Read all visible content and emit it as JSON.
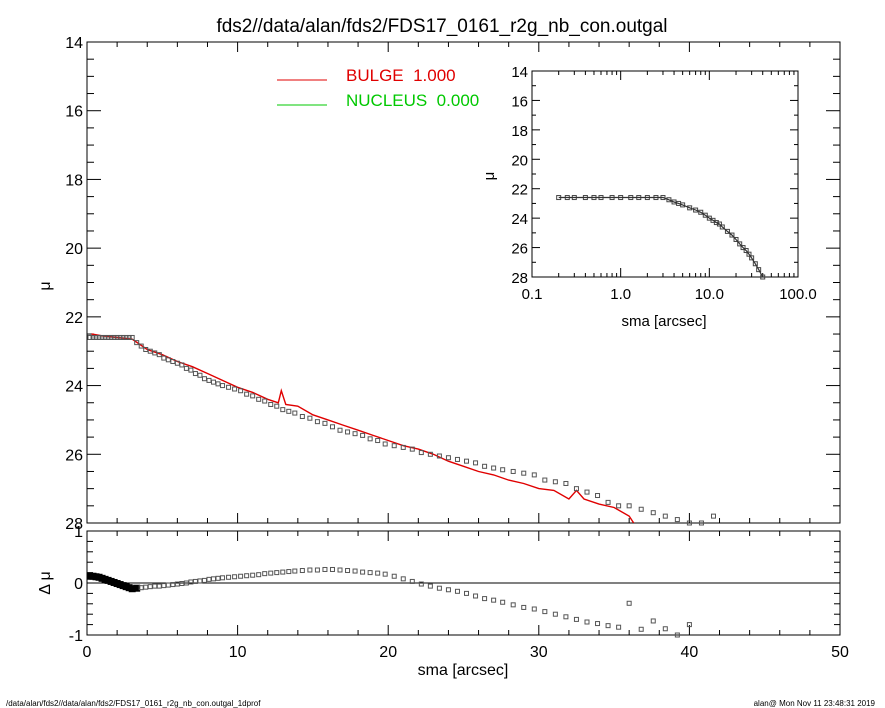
{
  "title": "fds2//data/alan/fds2/FDS17_0161_r2g_nb_con.outgal",
  "footer_left": "/data/alan/fds2//data/alan/fds2/FDS17_0161_r2g_nb_con.outgal_1dprof",
  "footer_right": "alan@  Mon Nov 11 23:48:31 2019",
  "colors": {
    "bulge": "#e00000",
    "nucleus": "#00c800",
    "data": "#555555",
    "axes": "#000000"
  },
  "chart_data": [
    {
      "id": "main",
      "type": "scatter",
      "ylabel": "μ",
      "xlim": [
        0,
        50
      ],
      "ylim": [
        28,
        14
      ],
      "yticks": [
        "14",
        "16",
        "18",
        "20",
        "22",
        "24",
        "26",
        "28"
      ],
      "legend": [
        {
          "name": "BULGE  1.000",
          "color": "#e00000"
        },
        {
          "name": "NUCLEUS  0.000",
          "color": "#00c800"
        }
      ],
      "series": [
        {
          "name": "BULGE",
          "type": "line",
          "x": [
            0.3,
            1,
            2,
            3,
            4,
            5,
            6,
            7,
            8,
            9,
            10,
            11,
            12,
            12.7,
            12.9,
            13.2,
            14,
            15,
            16,
            17,
            18,
            19,
            20,
            21,
            22,
            23,
            24,
            25,
            26,
            27,
            28,
            29,
            30,
            31,
            32,
            32.5,
            33,
            34,
            35,
            36,
            36.3
          ],
          "y": [
            22.5,
            22.55,
            22.6,
            22.65,
            22.95,
            23.1,
            23.3,
            23.45,
            23.65,
            23.85,
            24.05,
            24.2,
            24.4,
            24.5,
            24.15,
            24.55,
            24.6,
            24.85,
            25.0,
            25.15,
            25.3,
            25.45,
            25.6,
            25.75,
            25.85,
            26.0,
            26.2,
            26.35,
            26.5,
            26.6,
            26.75,
            26.85,
            27.0,
            27.05,
            27.3,
            27.05,
            27.3,
            27.45,
            27.55,
            27.8,
            28.0
          ]
        },
        {
          "name": "data",
          "type": "scatter",
          "x": [
            0.2,
            0.4,
            0.6,
            0.8,
            1.0,
            1.2,
            1.4,
            1.6,
            1.8,
            2.0,
            2.2,
            2.4,
            2.6,
            2.8,
            3.0,
            3.3,
            3.6,
            3.9,
            4.2,
            4.5,
            4.8,
            5.1,
            5.4,
            5.7,
            6.0,
            6.3,
            6.6,
            6.9,
            7.2,
            7.5,
            7.8,
            8.1,
            8.4,
            8.7,
            9.0,
            9.4,
            9.8,
            10.2,
            10.6,
            11.0,
            11.4,
            11.8,
            12.2,
            12.6,
            13.0,
            13.4,
            13.8,
            14.3,
            14.8,
            15.3,
            15.8,
            16.3,
            16.8,
            17.3,
            17.8,
            18.3,
            18.8,
            19.3,
            19.8,
            20.4,
            21.0,
            21.6,
            22.2,
            22.8,
            23.4,
            24.0,
            24.6,
            25.2,
            25.8,
            26.4,
            27.0,
            27.6,
            28.3,
            29.0,
            29.7,
            30.4,
            31.1,
            31.8,
            32.5,
            33.2,
            33.9,
            34.6,
            35.3,
            36.0,
            36.8,
            37.6,
            38.4,
            39.2,
            40.0,
            40.8,
            41.6
          ],
          "y": [
            22.6,
            22.6,
            22.6,
            22.6,
            22.6,
            22.6,
            22.6,
            22.6,
            22.6,
            22.6,
            22.6,
            22.6,
            22.6,
            22.6,
            22.6,
            22.75,
            22.85,
            22.95,
            23.0,
            23.05,
            23.1,
            23.2,
            23.25,
            23.3,
            23.35,
            23.4,
            23.5,
            23.55,
            23.65,
            23.7,
            23.8,
            23.85,
            23.9,
            23.95,
            24.0,
            24.05,
            24.1,
            24.15,
            24.25,
            24.3,
            24.4,
            24.45,
            24.55,
            24.6,
            24.7,
            24.75,
            24.8,
            24.9,
            24.95,
            25.05,
            25.1,
            25.2,
            25.3,
            25.35,
            25.4,
            25.45,
            25.55,
            25.6,
            25.7,
            25.75,
            25.8,
            25.85,
            25.95,
            26.0,
            26.05,
            26.1,
            26.15,
            26.2,
            26.25,
            26.35,
            26.4,
            26.45,
            26.5,
            26.55,
            26.6,
            26.75,
            26.8,
            26.85,
            27.0,
            27.1,
            27.2,
            27.4,
            27.5,
            27.5,
            27.6,
            27.7,
            27.8,
            27.9,
            28.0,
            28.0,
            27.8
          ]
        }
      ]
    },
    {
      "id": "residual",
      "type": "scatter",
      "ylabel": "Δ μ",
      "xlabel": "sma [arcsec]",
      "xlim": [
        0,
        50
      ],
      "ylim": [
        -1,
        1
      ],
      "xticks": [
        "0",
        "10",
        "20",
        "30",
        "40",
        "50"
      ],
      "yticks": [
        "1",
        "0",
        "-1"
      ],
      "series": [
        {
          "name": "residual",
          "x": [
            0.2,
            0.4,
            0.6,
            0.8,
            1.0,
            1.2,
            1.4,
            1.6,
            1.8,
            2.0,
            2.2,
            2.4,
            2.6,
            2.8,
            3.0,
            3.3,
            3.6,
            3.9,
            4.2,
            4.5,
            4.8,
            5.1,
            5.4,
            5.7,
            6.0,
            6.3,
            6.6,
            6.9,
            7.2,
            7.5,
            7.8,
            8.1,
            8.4,
            8.7,
            9.0,
            9.4,
            9.8,
            10.2,
            10.6,
            11.0,
            11.4,
            11.8,
            12.2,
            12.6,
            13.0,
            13.4,
            13.8,
            14.3,
            14.8,
            15.3,
            15.8,
            16.3,
            16.8,
            17.3,
            17.8,
            18.3,
            18.8,
            19.3,
            19.8,
            20.4,
            21.0,
            21.6,
            22.2,
            22.8,
            23.4,
            24.0,
            24.6,
            25.2,
            25.8,
            26.4,
            27.0,
            27.6,
            28.3,
            29.0,
            29.7,
            30.4,
            31.1,
            31.8,
            32.5,
            33.2,
            33.9,
            34.6,
            35.3,
            36.0,
            36.8,
            37.6,
            38.4,
            39.2,
            40.0
          ],
          "y": [
            0.13,
            0.13,
            0.12,
            0.11,
            0.09,
            0.07,
            0.05,
            0.03,
            0.01,
            -0.01,
            -0.03,
            -0.05,
            -0.07,
            -0.09,
            -0.11,
            -0.1,
            -0.09,
            -0.08,
            -0.07,
            -0.06,
            -0.06,
            -0.05,
            -0.04,
            -0.03,
            -0.02,
            -0.01,
            0.0,
            0.02,
            0.03,
            0.04,
            0.05,
            0.07,
            0.08,
            0.09,
            0.1,
            0.11,
            0.12,
            0.13,
            0.14,
            0.15,
            0.16,
            0.18,
            0.19,
            0.2,
            0.21,
            0.22,
            0.23,
            0.24,
            0.25,
            0.25,
            0.26,
            0.26,
            0.25,
            0.24,
            0.23,
            0.21,
            0.2,
            0.19,
            0.17,
            0.13,
            0.08,
            0.03,
            -0.02,
            -0.06,
            -0.1,
            -0.13,
            -0.16,
            -0.2,
            -0.25,
            -0.3,
            -0.33,
            -0.37,
            -0.42,
            -0.47,
            -0.5,
            -0.55,
            -0.6,
            -0.65,
            -0.7,
            -0.75,
            -0.78,
            -0.82,
            -0.85,
            -0.39,
            -0.89,
            -0.73,
            -0.88,
            -1.0,
            -0.8
          ]
        }
      ]
    },
    {
      "id": "inset",
      "type": "scatter",
      "ylabel": "μ",
      "xlabel": "sma [arcsec]",
      "xscale": "log",
      "xlim": [
        0.1,
        100
      ],
      "ylim": [
        28,
        14
      ],
      "xticks": [
        "0.1",
        "1.0",
        "10.0",
        "100.0"
      ],
      "yticks": [
        "14",
        "16",
        "18",
        "20",
        "22",
        "24",
        "26",
        "28"
      ],
      "series": [
        {
          "name": "inset data",
          "x": [
            0.2,
            0.25,
            0.3,
            0.4,
            0.5,
            0.6,
            0.8,
            1.0,
            1.3,
            1.6,
            2.0,
            2.5,
            3.0,
            3.5,
            4.0,
            4.5,
            5.0,
            6.0,
            7.0,
            8.0,
            9.0,
            10.0,
            11.0,
            12.0,
            13.0,
            14.0,
            16.0,
            18.0,
            20.0,
            22.0,
            24.0,
            26.0,
            28.0,
            30.0,
            33.0,
            36.0,
            40.0
          ],
          "y": [
            22.6,
            22.6,
            22.6,
            22.6,
            22.6,
            22.6,
            22.6,
            22.6,
            22.6,
            22.6,
            22.6,
            22.6,
            22.6,
            22.75,
            22.9,
            23.0,
            23.1,
            23.3,
            23.45,
            23.6,
            23.8,
            24.0,
            24.15,
            24.3,
            24.4,
            24.6,
            24.9,
            25.15,
            25.45,
            25.75,
            26.0,
            26.2,
            26.45,
            26.7,
            27.1,
            27.5,
            28.0
          ]
        }
      ]
    }
  ]
}
